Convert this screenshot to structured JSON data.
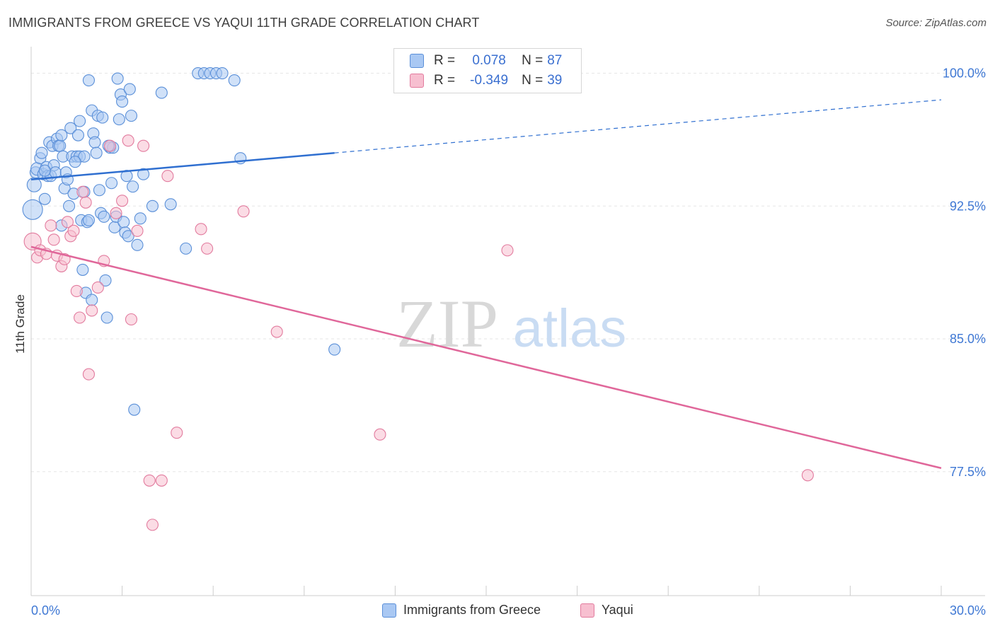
{
  "title": "IMMIGRANTS FROM GREECE VS YAQUI 11TH GRADE CORRELATION CHART",
  "source": "Source: ZipAtlas.com",
  "watermark": {
    "zip": "ZIP",
    "atlas": "atlas"
  },
  "legend": {
    "r_label": "R =",
    "n_label": "N =",
    "series": [
      {
        "name": "Immigrants from Greece",
        "r": "0.078",
        "n": "87",
        "fill": "#a9c8f3",
        "stroke": "#5a8fd8"
      },
      {
        "name": "Yaqui",
        "r": "-0.349",
        "n": "39",
        "fill": "#f7bfd0",
        "stroke": "#e27b9e"
      }
    ]
  },
  "colors": {
    "blue_line": "#2f6fd0",
    "pink_line": "#e0679a",
    "axis_text": "#3f78d4",
    "grid": "#e6e6e6"
  },
  "chart_data": {
    "type": "scatter",
    "title": "IMMIGRANTS FROM GREECE VS YAQUI 11TH GRADE CORRELATION CHART",
    "xlabel": "",
    "ylabel": "11th Grade",
    "xlim": [
      0,
      30
    ],
    "ylim": [
      70.5,
      101.5
    ],
    "x_tick_labels": [
      {
        "value": 0,
        "label": "0.0%"
      },
      {
        "value": 30,
        "label": "30.0%"
      }
    ],
    "x_minor_ticks": [
      3,
      6,
      9,
      12,
      15,
      18,
      21,
      24,
      27,
      30
    ],
    "y_ticks": [
      {
        "value": 100,
        "label": "100.0%"
      },
      {
        "value": 92.5,
        "label": "92.5%"
      },
      {
        "value": 85,
        "label": "85.0%"
      },
      {
        "value": 77.5,
        "label": "77.5%"
      }
    ],
    "series": [
      {
        "name": "Immigrants from Greece",
        "color": "#5a8fd8",
        "trend": {
          "x": [
            0,
            10,
            30
          ],
          "y": [
            94.0,
            95.5,
            98.5
          ],
          "solid_until": 10
        },
        "points": [
          {
            "x": 0.05,
            "y": 92.3,
            "s": 14
          },
          {
            "x": 0.1,
            "y": 93.7,
            "s": 10
          },
          {
            "x": 0.15,
            "y": 94.4,
            "s": 8
          },
          {
            "x": 0.2,
            "y": 94.6,
            "s": 9
          },
          {
            "x": 0.3,
            "y": 95.2,
            "s": 8
          },
          {
            "x": 0.35,
            "y": 95.5,
            "s": 8
          },
          {
            "x": 0.4,
            "y": 94.3,
            "s": 8
          },
          {
            "x": 0.45,
            "y": 92.9,
            "s": 8
          },
          {
            "x": 0.5,
            "y": 94.7,
            "s": 8
          },
          {
            "x": 0.55,
            "y": 94.2,
            "s": 8
          },
          {
            "x": 0.6,
            "y": 96.1,
            "s": 8
          },
          {
            "x": 0.65,
            "y": 94.2,
            "s": 8
          },
          {
            "x": 0.7,
            "y": 95.9,
            "s": 8
          },
          {
            "x": 0.75,
            "y": 94.8,
            "s": 8
          },
          {
            "x": 0.8,
            "y": 94.4,
            "s": 8
          },
          {
            "x": 0.85,
            "y": 96.3,
            "s": 8
          },
          {
            "x": 0.9,
            "y": 95.9,
            "s": 8
          },
          {
            "x": 0.95,
            "y": 95.9,
            "s": 8
          },
          {
            "x": 1.0,
            "y": 91.4,
            "s": 8
          },
          {
            "x": 1.05,
            "y": 95.3,
            "s": 8
          },
          {
            "x": 1.1,
            "y": 93.5,
            "s": 8
          },
          {
            "x": 1.15,
            "y": 94.4,
            "s": 8
          },
          {
            "x": 1.2,
            "y": 94.0,
            "s": 8
          },
          {
            "x": 1.25,
            "y": 92.5,
            "s": 8
          },
          {
            "x": 1.3,
            "y": 96.9,
            "s": 8
          },
          {
            "x": 1.35,
            "y": 95.3,
            "s": 8
          },
          {
            "x": 1.4,
            "y": 93.2,
            "s": 8
          },
          {
            "x": 1.5,
            "y": 95.3,
            "s": 8
          },
          {
            "x": 1.55,
            "y": 96.5,
            "s": 8
          },
          {
            "x": 1.6,
            "y": 97.3,
            "s": 8
          },
          {
            "x": 1.65,
            "y": 91.7,
            "s": 8
          },
          {
            "x": 1.7,
            "y": 88.9,
            "s": 8
          },
          {
            "x": 1.75,
            "y": 93.3,
            "s": 8
          },
          {
            "x": 1.8,
            "y": 87.6,
            "s": 8
          },
          {
            "x": 1.85,
            "y": 91.6,
            "s": 8
          },
          {
            "x": 1.9,
            "y": 91.7,
            "s": 8
          },
          {
            "x": 1.6,
            "y": 95.3,
            "s": 8
          },
          {
            "x": 1.75,
            "y": 95.3,
            "s": 8
          },
          {
            "x": 2.0,
            "y": 97.9,
            "s": 8
          },
          {
            "x": 2.05,
            "y": 96.6,
            "s": 8
          },
          {
            "x": 2.1,
            "y": 96.1,
            "s": 8
          },
          {
            "x": 2.15,
            "y": 95.5,
            "s": 8
          },
          {
            "x": 2.2,
            "y": 97.6,
            "s": 8
          },
          {
            "x": 1.9,
            "y": 99.6,
            "s": 8
          },
          {
            "x": 2.25,
            "y": 93.4,
            "s": 8
          },
          {
            "x": 2.3,
            "y": 92.1,
            "s": 8
          },
          {
            "x": 2.35,
            "y": 97.5,
            "s": 8
          },
          {
            "x": 2.4,
            "y": 91.9,
            "s": 8
          },
          {
            "x": 2.45,
            "y": 88.3,
            "s": 8
          },
          {
            "x": 2.0,
            "y": 87.2,
            "s": 8
          },
          {
            "x": 2.5,
            "y": 86.2,
            "s": 8
          },
          {
            "x": 2.6,
            "y": 95.8,
            "s": 8
          },
          {
            "x": 2.65,
            "y": 93.8,
            "s": 8
          },
          {
            "x": 2.7,
            "y": 95.8,
            "s": 8
          },
          {
            "x": 2.75,
            "y": 91.3,
            "s": 8
          },
          {
            "x": 2.8,
            "y": 91.9,
            "s": 8
          },
          {
            "x": 2.85,
            "y": 99.7,
            "s": 8
          },
          {
            "x": 2.9,
            "y": 97.4,
            "s": 8
          },
          {
            "x": 2.95,
            "y": 98.8,
            "s": 8
          },
          {
            "x": 3.0,
            "y": 98.4,
            "s": 8
          },
          {
            "x": 3.05,
            "y": 91.6,
            "s": 8
          },
          {
            "x": 3.1,
            "y": 91.0,
            "s": 8
          },
          {
            "x": 3.15,
            "y": 94.2,
            "s": 8
          },
          {
            "x": 3.2,
            "y": 90.8,
            "s": 8
          },
          {
            "x": 3.25,
            "y": 99.1,
            "s": 8
          },
          {
            "x": 3.3,
            "y": 97.6,
            "s": 8
          },
          {
            "x": 3.35,
            "y": 93.6,
            "s": 8
          },
          {
            "x": 3.4,
            "y": 81.0,
            "s": 8
          },
          {
            "x": 3.5,
            "y": 90.3,
            "s": 8
          },
          {
            "x": 3.6,
            "y": 91.8,
            "s": 8
          },
          {
            "x": 4.0,
            "y": 92.5,
            "s": 8
          },
          {
            "x": 4.3,
            "y": 98.9,
            "s": 8
          },
          {
            "x": 4.6,
            "y": 92.6,
            "s": 8
          },
          {
            "x": 5.1,
            "y": 90.1,
            "s": 8
          },
          {
            "x": 5.5,
            "y": 100.0,
            "s": 8
          },
          {
            "x": 5.7,
            "y": 100.0,
            "s": 8
          },
          {
            "x": 5.9,
            "y": 100.0,
            "s": 8
          },
          {
            "x": 6.1,
            "y": 100.0,
            "s": 8
          },
          {
            "x": 6.3,
            "y": 100.0,
            "s": 8
          },
          {
            "x": 6.7,
            "y": 99.6,
            "s": 8
          },
          {
            "x": 6.9,
            "y": 95.2,
            "s": 8
          },
          {
            "x": 10.0,
            "y": 84.4,
            "s": 8
          },
          {
            "x": 1.0,
            "y": 96.5,
            "s": 8
          },
          {
            "x": 0.45,
            "y": 94.5,
            "s": 8
          },
          {
            "x": 2.55,
            "y": 95.9,
            "s": 8
          },
          {
            "x": 1.45,
            "y": 95.0,
            "s": 8
          },
          {
            "x": 3.7,
            "y": 94.3,
            "s": 8
          }
        ]
      },
      {
        "name": "Yaqui",
        "color": "#e27b9e",
        "trend": {
          "x": [
            0,
            30
          ],
          "y": [
            90.2,
            77.7
          ]
        },
        "points": [
          {
            "x": 0.05,
            "y": 90.5,
            "s": 12
          },
          {
            "x": 0.2,
            "y": 89.6,
            "s": 8
          },
          {
            "x": 0.3,
            "y": 90.0,
            "s": 8
          },
          {
            "x": 0.5,
            "y": 89.8,
            "s": 8
          },
          {
            "x": 0.65,
            "y": 91.4,
            "s": 8
          },
          {
            "x": 0.75,
            "y": 90.6,
            "s": 8
          },
          {
            "x": 0.85,
            "y": 89.7,
            "s": 8
          },
          {
            "x": 1.0,
            "y": 89.1,
            "s": 8
          },
          {
            "x": 1.1,
            "y": 89.5,
            "s": 8
          },
          {
            "x": 1.2,
            "y": 91.6,
            "s": 8
          },
          {
            "x": 1.3,
            "y": 90.8,
            "s": 8
          },
          {
            "x": 1.4,
            "y": 91.1,
            "s": 8
          },
          {
            "x": 1.5,
            "y": 87.7,
            "s": 8
          },
          {
            "x": 1.6,
            "y": 86.2,
            "s": 8
          },
          {
            "x": 1.7,
            "y": 93.3,
            "s": 8
          },
          {
            "x": 1.8,
            "y": 92.7,
            "s": 8
          },
          {
            "x": 1.9,
            "y": 83.0,
            "s": 8
          },
          {
            "x": 2.0,
            "y": 86.6,
            "s": 8
          },
          {
            "x": 2.2,
            "y": 87.9,
            "s": 8
          },
          {
            "x": 2.4,
            "y": 89.4,
            "s": 8
          },
          {
            "x": 2.6,
            "y": 95.9,
            "s": 8
          },
          {
            "x": 2.8,
            "y": 92.1,
            "s": 8
          },
          {
            "x": 3.0,
            "y": 92.8,
            "s": 8
          },
          {
            "x": 3.2,
            "y": 96.2,
            "s": 8
          },
          {
            "x": 3.3,
            "y": 86.1,
            "s": 8
          },
          {
            "x": 3.5,
            "y": 91.1,
            "s": 8
          },
          {
            "x": 3.7,
            "y": 95.9,
            "s": 8
          },
          {
            "x": 3.9,
            "y": 77.0,
            "s": 8
          },
          {
            "x": 4.0,
            "y": 74.5,
            "s": 8
          },
          {
            "x": 4.3,
            "y": 77.0,
            "s": 8
          },
          {
            "x": 4.5,
            "y": 94.2,
            "s": 8
          },
          {
            "x": 4.8,
            "y": 79.7,
            "s": 8
          },
          {
            "x": 5.6,
            "y": 91.2,
            "s": 8
          },
          {
            "x": 5.8,
            "y": 90.1,
            "s": 8
          },
          {
            "x": 7.0,
            "y": 92.2,
            "s": 8
          },
          {
            "x": 8.1,
            "y": 85.4,
            "s": 8
          },
          {
            "x": 11.5,
            "y": 79.6,
            "s": 8
          },
          {
            "x": 15.7,
            "y": 90.0,
            "s": 8
          },
          {
            "x": 25.6,
            "y": 77.3,
            "s": 8
          }
        ]
      }
    ]
  }
}
